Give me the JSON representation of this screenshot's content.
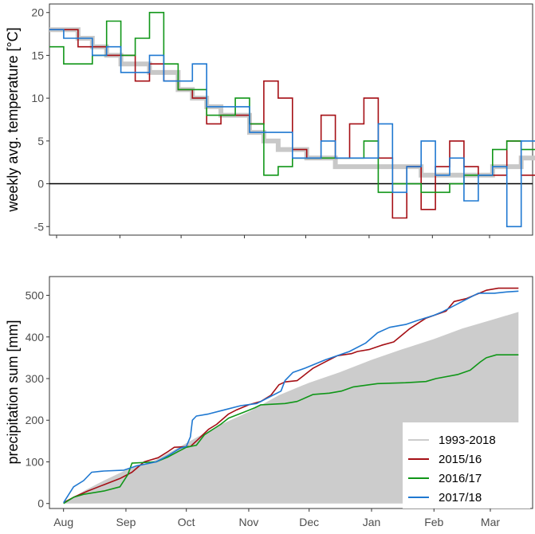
{
  "chart_data": [
    {
      "type": "line",
      "panel": "top",
      "ylabel": "weekly avg. temperature [°C]",
      "xlabel": "",
      "x_unit": "week index since Aug 1 (0 = Aug 1)",
      "ylim": [
        -6,
        21
      ],
      "yticks": [
        -5,
        0,
        5,
        10,
        15,
        20
      ],
      "xlim": [
        -0.5,
        33.3
      ],
      "xticks": [
        0,
        4.43,
        8.71,
        13.14,
        17.43,
        21.86,
        26.29,
        30.29
      ],
      "zero_line": true,
      "series": [
        {
          "name": "1993-2018",
          "color": "#c8c8c8",
          "width": 6,
          "values": [
            18,
            18,
            17,
            16,
            15,
            14,
            14,
            13,
            13,
            11,
            10,
            9,
            8,
            8,
            6,
            5,
            4,
            4,
            3,
            3,
            2,
            2,
            2,
            2,
            2,
            2,
            1,
            1,
            1,
            1,
            1,
            2,
            2,
            3
          ]
        },
        {
          "name": "2015/16",
          "color": "#a50f15",
          "width": 1.6,
          "values": [
            18,
            18,
            16,
            16,
            15,
            15,
            12,
            14,
            12,
            11,
            10,
            7,
            8,
            8,
            7,
            12,
            10,
            4,
            3,
            8,
            3,
            7,
            10,
            3,
            -4,
            2,
            -3,
            2,
            5,
            2,
            1,
            1,
            5,
            1
          ]
        },
        {
          "name": "2016/17",
          "color": "#109618",
          "width": 1.6,
          "values": [
            16,
            14,
            14,
            15,
            19,
            15,
            17,
            20,
            14,
            11,
            11,
            8,
            8,
            10,
            7,
            1,
            2,
            3,
            3,
            3,
            3,
            3,
            5,
            -1,
            0,
            0,
            -1,
            -1,
            0,
            1,
            1,
            4,
            5,
            4
          ]
        },
        {
          "name": "2017/18",
          "color": "#1f78d1",
          "width": 1.6,
          "values": [
            18,
            17,
            17,
            15,
            16,
            13,
            13,
            15,
            12,
            12,
            14,
            9,
            9,
            9,
            6,
            6,
            6,
            3,
            3,
            5,
            3,
            3,
            3,
            7,
            -1,
            2,
            5,
            1,
            3,
            -2,
            1,
            2,
            -5,
            5
          ]
        }
      ]
    },
    {
      "type": "area+line",
      "panel": "bottom",
      "ylabel": "precipitation sum [mm]",
      "xlabel": "",
      "x_unit": "day since Aug 1",
      "ylim": [
        -12,
        545
      ],
      "yticks": [
        0,
        100,
        200,
        300,
        400,
        500
      ],
      "xlim": [
        -7,
        233
      ],
      "xticks": [
        0,
        31,
        61,
        92,
        122,
        153,
        184,
        212
      ],
      "xticklabels": [
        "Aug",
        "Sep",
        "Oct",
        "Nov",
        "Dec",
        "Jan",
        "Feb",
        "Mar"
      ],
      "area": {
        "name": "1993-2018",
        "color": "#cccccc",
        "points": [
          [
            0,
            0
          ],
          [
            10,
            30
          ],
          [
            20,
            55
          ],
          [
            31,
            80
          ],
          [
            46,
            105
          ],
          [
            61,
            145
          ],
          [
            76,
            185
          ],
          [
            92,
            220
          ],
          [
            107,
            260
          ],
          [
            122,
            290
          ],
          [
            137,
            315
          ],
          [
            153,
            345
          ],
          [
            168,
            370
          ],
          [
            184,
            395
          ],
          [
            198,
            420
          ],
          [
            212,
            440
          ],
          [
            226,
            460
          ]
        ]
      },
      "series": [
        {
          "name": "2015/16",
          "color": "#a50f15",
          "points": [
            [
              0,
              2
            ],
            [
              5,
              15
            ],
            [
              12,
              30
            ],
            [
              20,
              45
            ],
            [
              28,
              60
            ],
            [
              34,
              75
            ],
            [
              40,
              100
            ],
            [
              47,
              110
            ],
            [
              52,
              125
            ],
            [
              55,
              135
            ],
            [
              63,
              137
            ],
            [
              66,
              150
            ],
            [
              72,
              178
            ],
            [
              76,
              190
            ],
            [
              82,
              215
            ],
            [
              86,
              225
            ],
            [
              92,
              237
            ],
            [
              98,
              245
            ],
            [
              103,
              260
            ],
            [
              107,
              285
            ],
            [
              110,
              292
            ],
            [
              116,
              295
            ],
            [
              120,
              310
            ],
            [
              124,
              325
            ],
            [
              130,
              340
            ],
            [
              136,
              355
            ],
            [
              143,
              360
            ],
            [
              146,
              365
            ],
            [
              152,
              370
            ],
            [
              158,
              380
            ],
            [
              164,
              388
            ],
            [
              172,
              420
            ],
            [
              180,
              445
            ],
            [
              190,
              462
            ],
            [
              194,
              485
            ],
            [
              200,
              492
            ],
            [
              204,
              500
            ],
            [
              210,
              512
            ],
            [
              216,
              517
            ],
            [
              226,
              517
            ]
          ]
        },
        {
          "name": "2016/17",
          "color": "#109618",
          "points": [
            [
              0,
              0
            ],
            [
              5,
              15
            ],
            [
              10,
              22
            ],
            [
              20,
              30
            ],
            [
              28,
              40
            ],
            [
              32,
              70
            ],
            [
              34,
              97
            ],
            [
              46,
              100
            ],
            [
              52,
              112
            ],
            [
              57,
              125
            ],
            [
              61,
              135
            ],
            [
              66,
              140
            ],
            [
              70,
              165
            ],
            [
              78,
              190
            ],
            [
              82,
              205
            ],
            [
              90,
              220
            ],
            [
              95,
              230
            ],
            [
              98,
              237
            ],
            [
              110,
              240
            ],
            [
              116,
              245
            ],
            [
              124,
              262
            ],
            [
              132,
              265
            ],
            [
              138,
              270
            ],
            [
              144,
              280
            ],
            [
              156,
              288
            ],
            [
              170,
              290
            ],
            [
              180,
              293
            ],
            [
              185,
              300
            ],
            [
              196,
              310
            ],
            [
              202,
              320
            ],
            [
              207,
              340
            ],
            [
              210,
              350
            ],
            [
              215,
              357
            ],
            [
              226,
              357
            ]
          ]
        },
        {
          "name": "2017/18",
          "color": "#1f78d1",
          "points": [
            [
              0,
              2
            ],
            [
              5,
              40
            ],
            [
              10,
              55
            ],
            [
              14,
              75
            ],
            [
              20,
              78
            ],
            [
              30,
              80
            ],
            [
              36,
              90
            ],
            [
              46,
              100
            ],
            [
              52,
              115
            ],
            [
              58,
              133
            ],
            [
              61,
              137
            ],
            [
              63,
              160
            ],
            [
              64,
              200
            ],
            [
              66,
              210
            ],
            [
              72,
              215
            ],
            [
              80,
              225
            ],
            [
              88,
              235
            ],
            [
              96,
              240
            ],
            [
              102,
              255
            ],
            [
              108,
              270
            ],
            [
              110,
              295
            ],
            [
              114,
              315
            ],
            [
              120,
              325
            ],
            [
              130,
              345
            ],
            [
              142,
              365
            ],
            [
              150,
              385
            ],
            [
              156,
              410
            ],
            [
              162,
              423
            ],
            [
              170,
              430
            ],
            [
              176,
              440
            ],
            [
              184,
              452
            ],
            [
              188,
              460
            ],
            [
              194,
              475
            ],
            [
              200,
              490
            ],
            [
              206,
              505
            ],
            [
              214,
              505
            ],
            [
              220,
              508
            ],
            [
              226,
              510
            ]
          ]
        }
      ],
      "legend": {
        "placement": "bottom-right",
        "entries": [
          "1993-2018",
          "2015/16",
          "2016/17",
          "2017/18"
        ]
      }
    }
  ]
}
